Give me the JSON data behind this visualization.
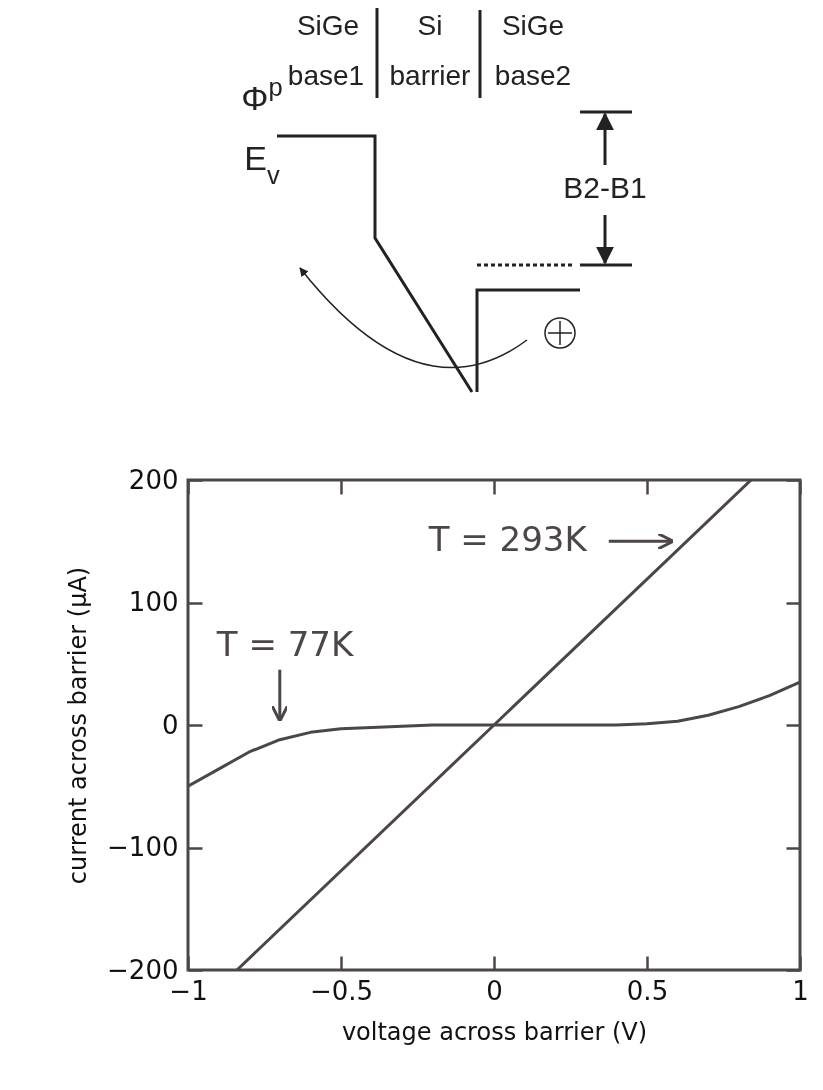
{
  "chart_data": {
    "type": "line",
    "xlabel": "voltage across barrier (V)",
    "ylabel": "current across barrier (μA)",
    "xlim": [
      -1,
      1
    ],
    "xticks": [
      -1,
      -0.5,
      0,
      0.5,
      1
    ],
    "ylim": [
      -200,
      200
    ],
    "yticks": [
      -200,
      -100,
      0,
      100,
      200
    ],
    "grid": false,
    "marker": "none",
    "line_style": "solid",
    "series": [
      {
        "color": "#4d4648",
        "x": [
          -0.84,
          0,
          0.84
        ],
        "values": [
          -200,
          0,
          200
        ]
      },
      {
        "color": "#4d4648",
        "x": [
          -1,
          -0.9,
          -0.8,
          -0.7,
          -0.6,
          -0.5,
          -0.4,
          -0.3,
          -0.2,
          0,
          0.2,
          0.3,
          0.4,
          0.5,
          0.6,
          0.7,
          0.8,
          0.9,
          1
        ],
        "values": [
          -50,
          -36,
          -22,
          -12,
          -6,
          -3,
          -2,
          -1,
          0,
          0,
          0,
          0,
          0,
          1,
          3,
          8,
          15,
          24,
          35
        ]
      }
    ],
    "annotations": [
      {
        "text": "T = 293K",
        "x": 0.63,
        "y": 150
      },
      {
        "text": "T = 77K",
        "x": -0.7,
        "y": -12
      },
      "SiGe",
      "base1",
      "Si",
      "barrier",
      "SiGe",
      "base2",
      "Φ$^{p}$",
      "E$_{v}$",
      "B2-B1"
    ]
  }
}
